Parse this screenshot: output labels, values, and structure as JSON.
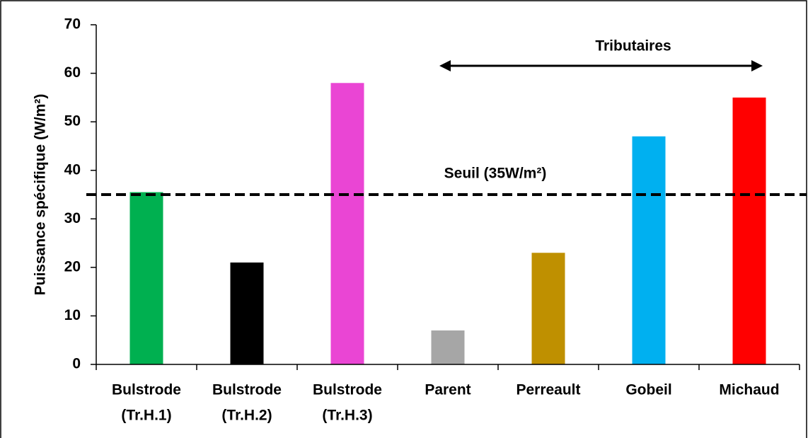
{
  "chart_data": {
    "type": "bar",
    "y_label": "Puissance spécifique (W/m²)",
    "categories": [
      [
        "Bulstrode",
        "(Tr.H.1)"
      ],
      [
        "Bulstrode",
        "(Tr.H.2)"
      ],
      [
        "Bulstrode",
        "(Tr.H.3)"
      ],
      [
        "Parent"
      ],
      [
        "Perreault"
      ],
      [
        "Gobeil"
      ],
      [
        "Michaud"
      ]
    ],
    "values": [
      35.5,
      21,
      58,
      7,
      23,
      47,
      55
    ],
    "colors": [
      "#00b050",
      "#000000",
      "#ea45d4",
      "#a6a6a6",
      "#bf9000",
      "#00b0f0",
      "#ff0000"
    ],
    "ylim": [
      0,
      70
    ],
    "yticks": [
      0,
      10,
      20,
      30,
      40,
      50,
      60,
      70
    ],
    "threshold": {
      "value": 35,
      "label": "Seuil (35W/m²)"
    },
    "annotation": "Tributaires"
  }
}
